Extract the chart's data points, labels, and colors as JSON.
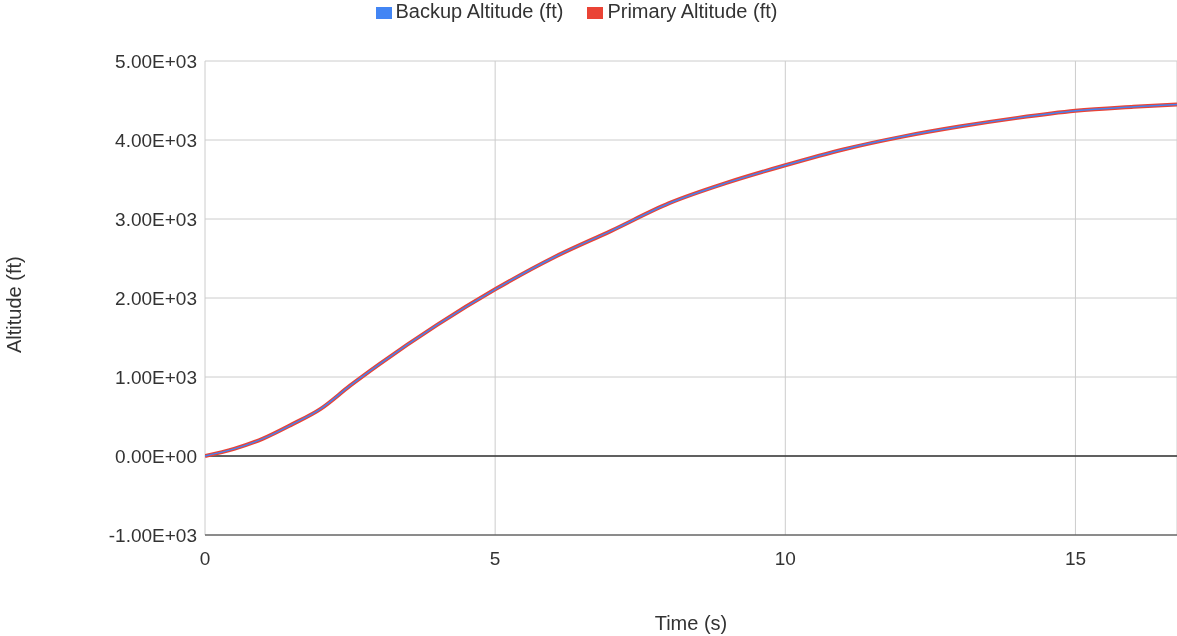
{
  "chart_data": {
    "type": "line",
    "xlabel": "Time (s)",
    "ylabel": "Altitude (ft)",
    "x": [
      0,
      0.5,
      1,
      1.5,
      2,
      2.5,
      3,
      4,
      5,
      6,
      7,
      8,
      9,
      10,
      11,
      12,
      13,
      14,
      15,
      16,
      16.75
    ],
    "series": [
      {
        "name": "Backup Altitude (ft)",
        "color": "#4285f4",
        "values": [
          0,
          90,
          220,
          400,
          600,
          890,
          1160,
          1660,
          2110,
          2510,
          2850,
          3200,
          3460,
          3680,
          3880,
          4040,
          4170,
          4280,
          4370,
          4420,
          4450
        ]
      },
      {
        "name": "Primary Altitude (ft)",
        "color": "#ea4335",
        "values": [
          0,
          90,
          220,
          400,
          600,
          890,
          1160,
          1660,
          2110,
          2510,
          2850,
          3200,
          3460,
          3680,
          3880,
          4040,
          4170,
          4280,
          4370,
          4420,
          4450
        ]
      }
    ],
    "xlim": [
      0,
      16.75
    ],
    "xticks": [
      0,
      5,
      10,
      15
    ],
    "ylim": [
      -1000,
      5000
    ],
    "yticks": [
      {
        "value": -1000,
        "label": "-1.00E+03"
      },
      {
        "value": 0,
        "label": "0.00E+00"
      },
      {
        "value": 1000,
        "label": "1.00E+03"
      },
      {
        "value": 2000,
        "label": "2.00E+03"
      },
      {
        "value": 3000,
        "label": "3.00E+03"
      },
      {
        "value": 4000,
        "label": "4.00E+03"
      },
      {
        "value": 5000,
        "label": "5.00E+03"
      }
    ],
    "ref_lines": [
      {
        "axis": "y",
        "value": 0,
        "color": "#333333"
      }
    ],
    "grid": true,
    "legend": "top",
    "marker": "none",
    "line_style": "solid"
  }
}
